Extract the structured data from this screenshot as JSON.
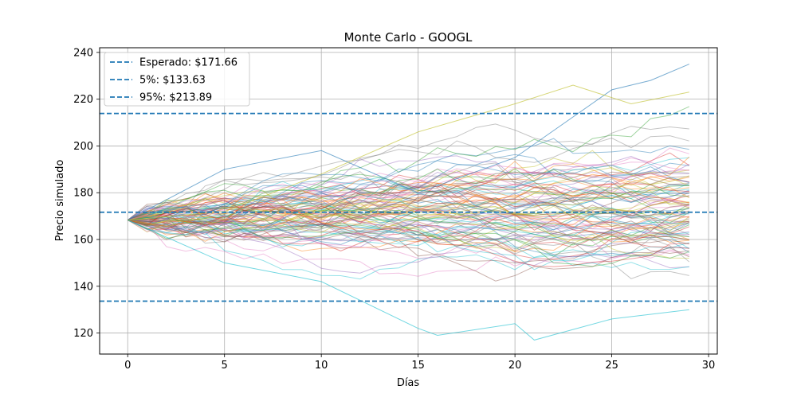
{
  "chart_data": {
    "type": "line",
    "title": "Monte Carlo - GOOGL",
    "xlabel": "Días",
    "ylabel": "Precio simulado",
    "xlim": [
      -1.45,
      30.45
    ],
    "ylim": [
      111,
      242
    ],
    "xticks": [
      0,
      5,
      10,
      15,
      20,
      25,
      30
    ],
    "yticks": [
      120,
      140,
      160,
      180,
      200,
      220,
      240
    ],
    "grid": true,
    "legend_position": "top-left",
    "start_price": 168.3,
    "days": 30,
    "num_simulations": 100,
    "path_color_cycle": [
      "#1f77b4",
      "#ff7f0e",
      "#2ca02c",
      "#d62728",
      "#9467bd",
      "#8c564b",
      "#e377c2",
      "#7f7f7f",
      "#bcbd22",
      "#17becf"
    ],
    "reference_lines": [
      {
        "label": "Esperado: $171.66",
        "value": 171.66,
        "color": "#1f77b4"
      },
      {
        "label": "5%: $133.63",
        "value": 133.63,
        "color": "#1f77b4"
      },
      {
        "label": "95%: $213.89",
        "value": 213.89,
        "color": "#1f77b4"
      }
    ],
    "highlighted_paths": [
      {
        "x": [
          0,
          5,
          10,
          15,
          16,
          20,
          21,
          25,
          29
        ],
        "y": [
          168.3,
          150,
          142,
          122,
          119,
          124,
          117,
          126,
          130
        ],
        "color": "#17becf"
      },
      {
        "x": [
          0,
          5,
          10,
          15,
          20,
          25,
          27,
          29
        ],
        "y": [
          168.3,
          190,
          198,
          180,
          195,
          224,
          228,
          235
        ],
        "color": "#1f77b4"
      },
      {
        "x": [
          0,
          5,
          10,
          15,
          20,
          23,
          26,
          29
        ],
        "y": [
          168.3,
          172,
          188,
          206,
          218,
          226,
          218,
          223
        ],
        "color": "#bcbd22"
      }
    ]
  }
}
